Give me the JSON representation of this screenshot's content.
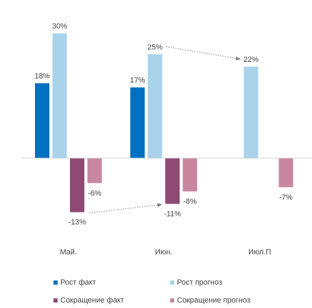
{
  "chart_data": {
    "type": "bar",
    "title": "",
    "xlabel": "",
    "ylabel": "",
    "ylim": [
      -20,
      35
    ],
    "categories": [
      "Май.",
      "Июн.",
      "Июл.П"
    ],
    "series": [
      {
        "name": "Рост факт",
        "color": "#0070C0",
        "values": [
          18,
          17,
          null
        ],
        "labels": [
          "18%",
          "17%",
          ""
        ]
      },
      {
        "name": "Рост прогноз",
        "color": "#A9D3EB",
        "values": [
          30,
          25,
          22
        ],
        "labels": [
          "30%",
          "25%",
          "22%"
        ]
      },
      {
        "name": "Сокращение факт",
        "color": "#8E4A74",
        "values": [
          -13,
          -11,
          null
        ],
        "labels": [
          "-13%",
          "-11%",
          ""
        ]
      },
      {
        "name": "Сокращение прогноз",
        "color": "#C7879F",
        "values": [
          -6,
          -8,
          -7
        ],
        "labels": [
          "-6%",
          "-8%",
          "-7%"
        ]
      }
    ],
    "arrows": [
      {
        "from": {
          "category": 1,
          "series": 1
        },
        "to": {
          "category": 2,
          "series": 1
        }
      },
      {
        "from": {
          "category": 0,
          "series": 2
        },
        "to": {
          "category": 1,
          "series": 2
        }
      }
    ],
    "grid": false,
    "legend_position": "bottom"
  }
}
